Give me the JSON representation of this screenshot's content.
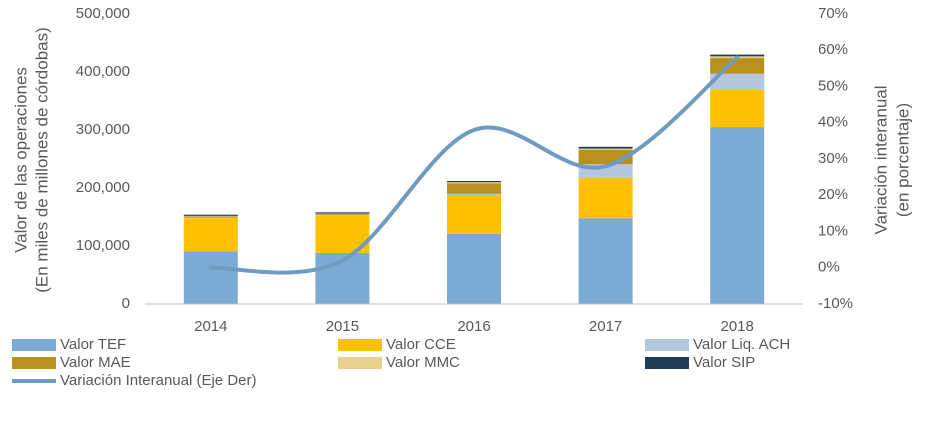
{
  "chart_data": {
    "type": "bar",
    "categories": [
      "2014",
      "2015",
      "2016",
      "2017",
      "2018"
    ],
    "series": [
      {
        "name": "Valor TEF",
        "color": "#7baad4",
        "values": [
          91000,
          88000,
          121000,
          148000,
          305000
        ]
      },
      {
        "name": "Valor CCE",
        "color": "#ffc000",
        "values": [
          57000,
          64000,
          67000,
          69000,
          64000
        ]
      },
      {
        "name": "Valor Liq. ACH",
        "color": "#b4c7dc",
        "values": [
          1000,
          1000,
          2000,
          24000,
          28000
        ]
      },
      {
        "name": "Valor MAE",
        "color": "#b8901e",
        "values": [
          2000,
          2000,
          18000,
          25000,
          27000
        ]
      },
      {
        "name": "Valor MMC",
        "color": "#e8cf8a",
        "values": [
          1000,
          1000,
          2000,
          2000,
          3000
        ]
      },
      {
        "name": "Valor SIP",
        "color": "#1f3b57",
        "values": [
          2000,
          2000,
          2000,
          3000,
          3000
        ]
      },
      {
        "name": "Variación Interanual (Eje Der)",
        "color": "#6d9bc3",
        "type": "line",
        "axis": "y2",
        "values": [
          0,
          2,
          38,
          28,
          58
        ]
      }
    ],
    "y_label": [
      "Valor de las operaciones",
      "(En miles de millones de córdobas)"
    ],
    "y2_label": [
      "Variación interanual",
      "(en porcentaje)"
    ],
    "ylim": [
      0,
      500000
    ],
    "yticks": [
      0,
      {
        "value": 100000,
        "label": "100,000"
      },
      {
        "value": 200000,
        "label": "200,000"
      },
      {
        "value": 300000,
        "label": "300,000"
      },
      {
        "value": 400000,
        "label": "400,000"
      },
      {
        "value": 500000,
        "label": "500,000"
      }
    ],
    "y2lim": [
      -10,
      70
    ],
    "y2ticks": [
      {
        "value": -10,
        "label": "-10%"
      },
      {
        "value": 0,
        "label": "0%"
      },
      {
        "value": 10,
        "label": "10%"
      },
      {
        "value": 20,
        "label": "20%"
      },
      {
        "value": 30,
        "label": "30%"
      },
      {
        "value": 40,
        "label": "40%"
      },
      {
        "value": 50,
        "label": "50%"
      },
      {
        "value": 60,
        "label": "60%"
      },
      {
        "value": 70,
        "label": "70%"
      }
    ],
    "grid": false,
    "legend": "bottom"
  }
}
